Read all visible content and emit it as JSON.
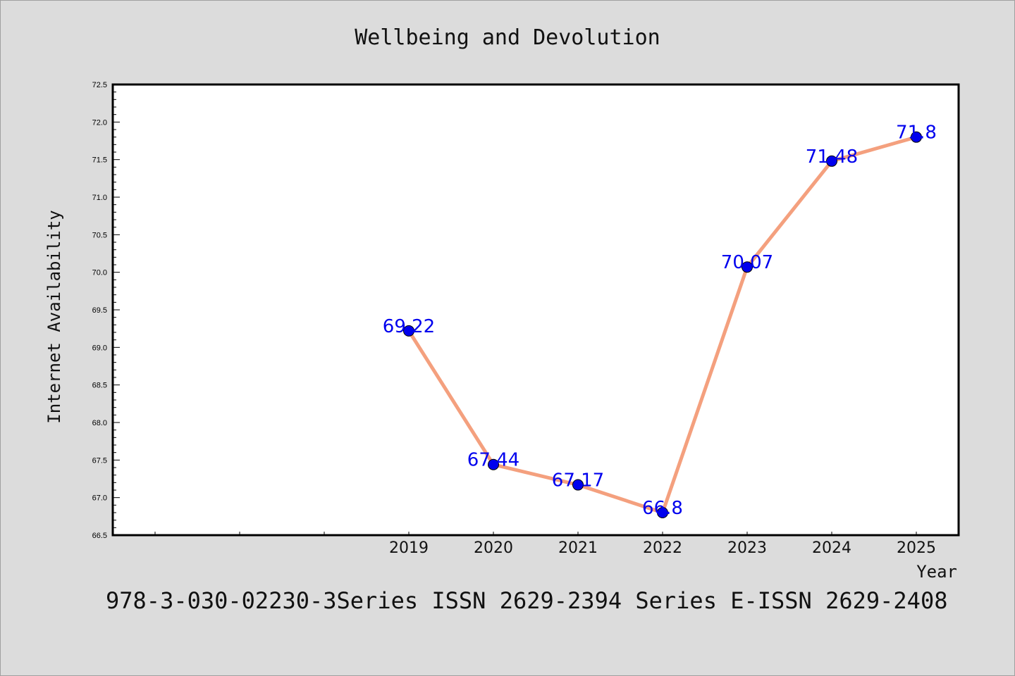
{
  "chart_data": {
    "type": "line",
    "title": "Wellbeing and Devolution",
    "xlabel": "Year",
    "ylabel": "Internet Availability",
    "footnote": "978-3-030-02230-3Series ISSN 2629-2394 Series E-ISSN 2629-2408",
    "categories": [
      "2019",
      "2020",
      "2021",
      "2022",
      "2023",
      "2024",
      "2025"
    ],
    "values": [
      69.22,
      67.44,
      67.17,
      66.8,
      70.07,
      71.48,
      71.8
    ],
    "data_labels": [
      "69.22",
      "67.44",
      "67.17",
      "66.8",
      "70.07",
      "71.48",
      "71.8"
    ],
    "ylim": [
      66.5,
      72.5
    ],
    "yticks": [
      "66.5",
      "67.0",
      "67.5",
      "68.0",
      "68.5",
      "69.0",
      "69.5",
      "70.0",
      "70.5",
      "71.0",
      "71.5",
      "72.0",
      "72.5"
    ],
    "grid": false,
    "legend": "none",
    "colors": {
      "line": "#f4a07e",
      "marker": "#0000ee",
      "label": "#0000ee",
      "plot_bg": "#ffffff",
      "page_bg": "#dcdcdc"
    }
  }
}
